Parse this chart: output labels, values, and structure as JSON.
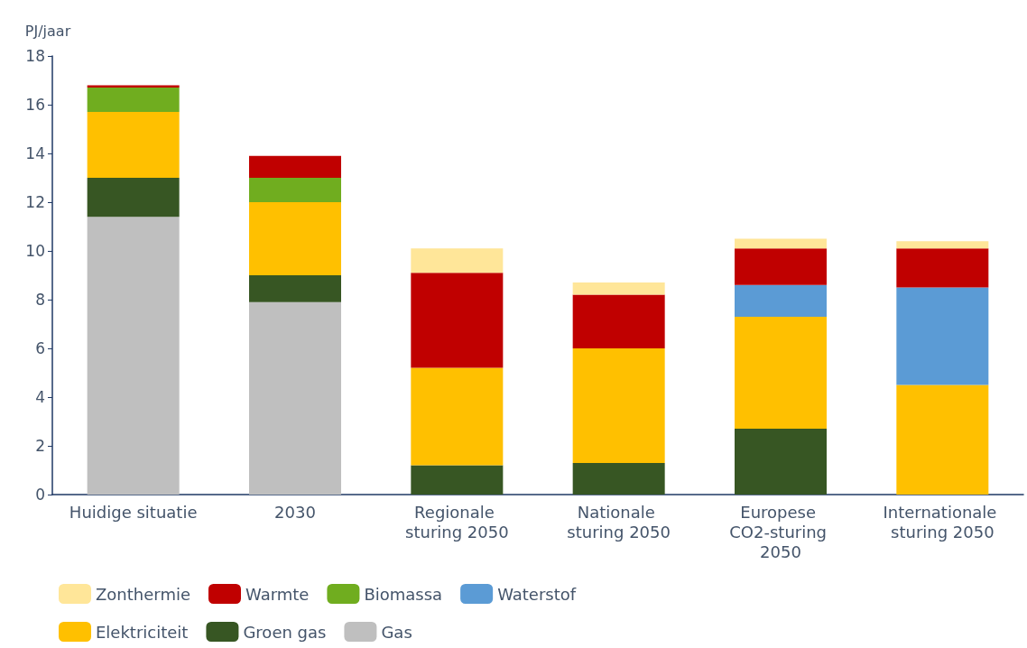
{
  "chart_data": {
    "type": "bar",
    "stacked": true,
    "ylabel": "PJ/jaar",
    "categories": [
      "Huidige situatie",
      "2030",
      "Regionale sturing 2050",
      "Nationale sturing 2050",
      "Europese CO2-sturing 2050",
      "Internationale sturing 2050"
    ],
    "series": [
      {
        "name": "Gas",
        "color": "#bfbfbf",
        "values": [
          11.4,
          7.9,
          0,
          0,
          0,
          0
        ]
      },
      {
        "name": "Groen gas",
        "color": "#375623",
        "values": [
          1.6,
          1.1,
          1.2,
          1.3,
          2.7,
          0
        ]
      },
      {
        "name": "Elektriciteit",
        "color": "#ffc000",
        "values": [
          2.7,
          3.0,
          4.0,
          4.7,
          4.6,
          4.5
        ]
      },
      {
        "name": "Waterstof",
        "color": "#5b9bd5",
        "values": [
          0,
          0,
          0,
          0,
          1.3,
          4.0
        ]
      },
      {
        "name": "Biomassa",
        "color": "#70ad1f",
        "values": [
          1.0,
          1.0,
          0,
          0,
          0,
          0
        ]
      },
      {
        "name": "Warmte",
        "color": "#c00000",
        "values": [
          0.1,
          0.9,
          3.9,
          2.2,
          1.5,
          1.6
        ]
      },
      {
        "name": "Zonthermie",
        "color": "#ffe699",
        "values": [
          0,
          0,
          1.0,
          0.5,
          0.4,
          0.3
        ]
      }
    ],
    "ylim": [
      0,
      18
    ],
    "yticks": [
      0,
      2,
      4,
      6,
      8,
      10,
      12,
      14,
      16,
      18
    ],
    "grid": false,
    "legend": "bottom left"
  }
}
